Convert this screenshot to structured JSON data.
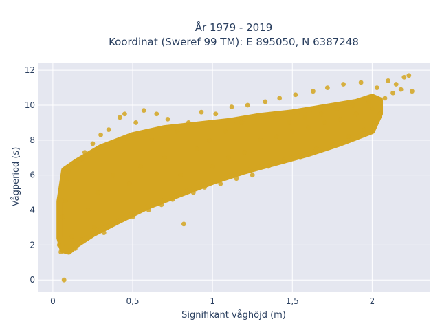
{
  "chart_data": {
    "type": "scatter",
    "title_line1": "År 1979 - 2019",
    "title_line2": "Koordinat (Sweref 99 TM): E 895050, N 6387248",
    "xlabel": "Signifikant våghöjd (m)",
    "ylabel": "Vågperiod (s)",
    "xlim": [
      -0.09,
      2.36
    ],
    "ylim": [
      -0.7,
      12.4
    ],
    "xticks": [
      0,
      0.5,
      1,
      1.5,
      2
    ],
    "xtick_labels": [
      "0",
      "0,5",
      "1",
      "1,5",
      "2"
    ],
    "yticks": [
      0,
      2,
      4,
      6,
      8,
      10,
      12
    ],
    "ytick_labels": [
      "0",
      "2",
      "4",
      "6",
      "8",
      "10",
      "12"
    ],
    "grid": true,
    "marker_color": "#d4a520",
    "plot_background": "#e5e7f0",
    "points": [
      [
        0.07,
        0.0
      ],
      [
        0.04,
        2.0
      ],
      [
        0.05,
        1.6
      ],
      [
        0.06,
        3.6
      ],
      [
        0.08,
        4.5
      ],
      [
        0.09,
        5.8
      ],
      [
        0.1,
        6.2
      ],
      [
        0.12,
        2.5
      ],
      [
        0.14,
        1.8
      ],
      [
        0.15,
        6.6
      ],
      [
        0.17,
        6.9
      ],
      [
        0.18,
        2.3
      ],
      [
        0.2,
        7.3
      ],
      [
        0.22,
        4.0
      ],
      [
        0.25,
        7.8
      ],
      [
        0.26,
        3.0
      ],
      [
        0.28,
        5.0
      ],
      [
        0.3,
        8.3
      ],
      [
        0.32,
        2.7
      ],
      [
        0.35,
        8.6
      ],
      [
        0.38,
        6.0
      ],
      [
        0.4,
        3.3
      ],
      [
        0.42,
        9.3
      ],
      [
        0.45,
        9.5
      ],
      [
        0.48,
        5.5
      ],
      [
        0.5,
        3.6
      ],
      [
        0.52,
        9.0
      ],
      [
        0.55,
        6.5
      ],
      [
        0.57,
        9.7
      ],
      [
        0.6,
        4.0
      ],
      [
        0.62,
        8.0
      ],
      [
        0.65,
        9.5
      ],
      [
        0.68,
        4.3
      ],
      [
        0.7,
        7.0
      ],
      [
        0.72,
        9.2
      ],
      [
        0.75,
        4.6
      ],
      [
        0.78,
        8.5
      ],
      [
        0.8,
        6.0
      ],
      [
        0.82,
        3.2
      ],
      [
        0.85,
        9.0
      ],
      [
        0.88,
        5.0
      ],
      [
        0.9,
        7.5
      ],
      [
        0.93,
        9.6
      ],
      [
        0.95,
        5.3
      ],
      [
        0.98,
        8.0
      ],
      [
        1.0,
        6.5
      ],
      [
        1.02,
        9.5
      ],
      [
        1.05,
        5.5
      ],
      [
        1.08,
        8.5
      ],
      [
        1.1,
        7.0
      ],
      [
        1.12,
        9.9
      ],
      [
        1.15,
        5.8
      ],
      [
        1.18,
        9.0
      ],
      [
        1.2,
        7.3
      ],
      [
        1.22,
        10.0
      ],
      [
        1.25,
        6.0
      ],
      [
        1.28,
        9.3
      ],
      [
        1.3,
        8.0
      ],
      [
        1.33,
        10.2
      ],
      [
        1.35,
        6.5
      ],
      [
        1.38,
        9.5
      ],
      [
        1.4,
        8.2
      ],
      [
        1.42,
        10.4
      ],
      [
        1.45,
        6.8
      ],
      [
        1.48,
        9.0
      ],
      [
        1.5,
        8.5
      ],
      [
        1.52,
        10.6
      ],
      [
        1.55,
        7.0
      ],
      [
        1.58,
        9.3
      ],
      [
        1.6,
        8.7
      ],
      [
        1.63,
        10.8
      ],
      [
        1.65,
        7.5
      ],
      [
        1.68,
        9.5
      ],
      [
        1.7,
        9.0
      ],
      [
        1.72,
        11.0
      ],
      [
        1.75,
        7.8
      ],
      [
        1.78,
        9.8
      ],
      [
        1.8,
        9.2
      ],
      [
        1.82,
        11.2
      ],
      [
        1.85,
        8.2
      ],
      [
        1.88,
        10.0
      ],
      [
        1.9,
        9.5
      ],
      [
        1.93,
        11.3
      ],
      [
        1.95,
        8.6
      ],
      [
        1.98,
        10.2
      ],
      [
        2.0,
        9.8
      ],
      [
        2.03,
        11.0
      ],
      [
        2.05,
        9.5
      ],
      [
        2.08,
        10.4
      ],
      [
        2.1,
        11.4
      ],
      [
        2.13,
        10.7
      ],
      [
        2.15,
        11.2
      ],
      [
        2.18,
        10.9
      ],
      [
        2.2,
        11.6
      ],
      [
        2.23,
        11.7
      ],
      [
        2.25,
        10.8
      ]
    ]
  }
}
